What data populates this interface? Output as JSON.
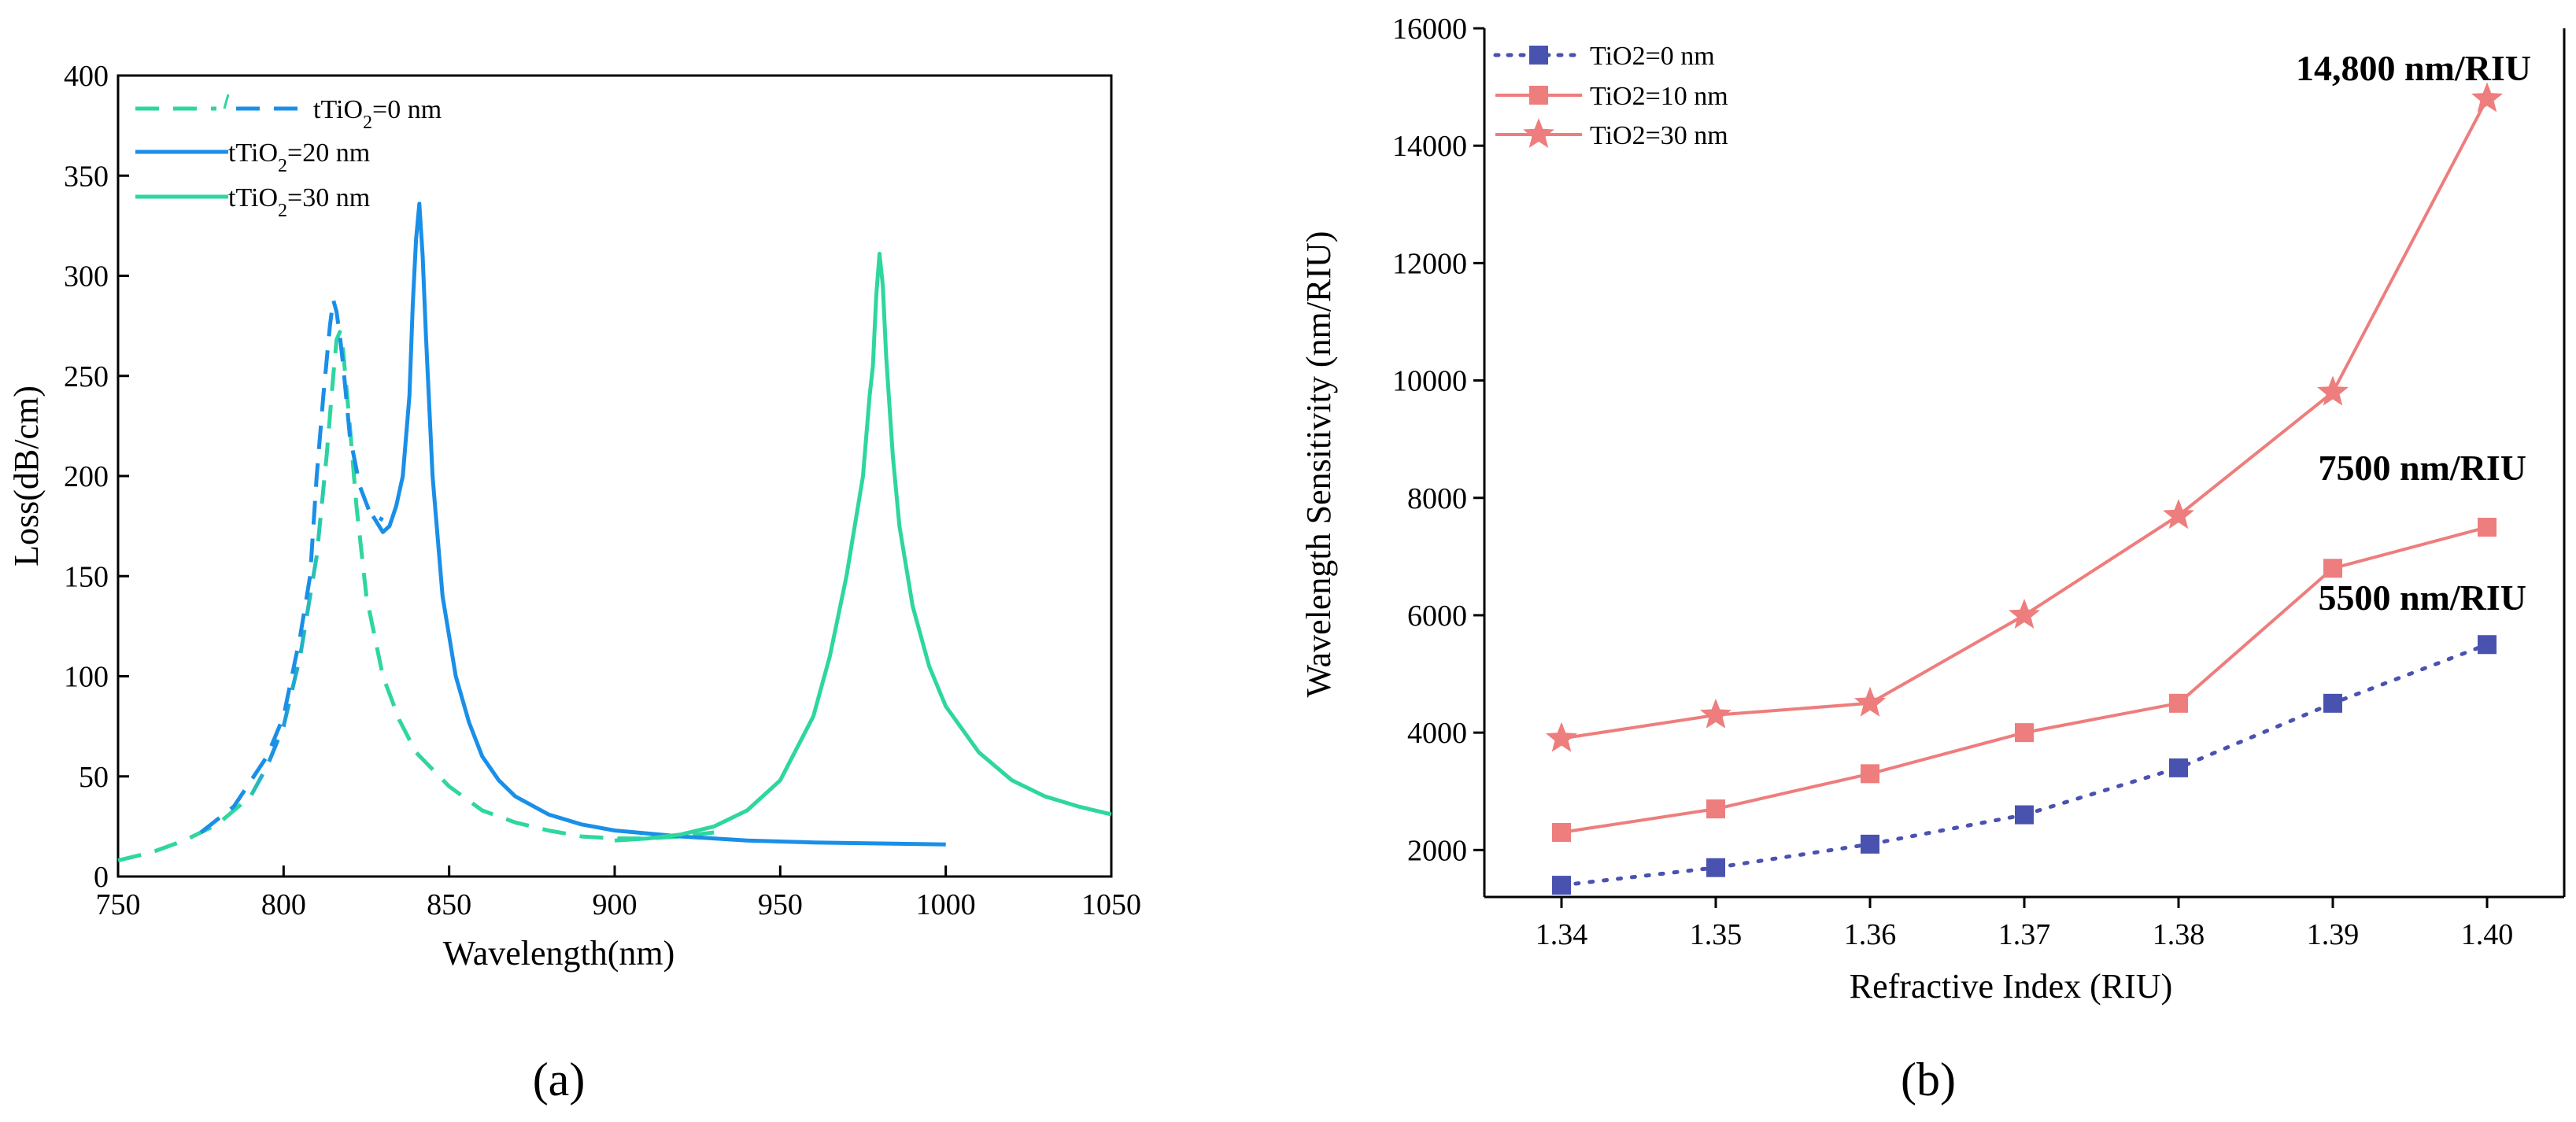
{
  "figure": {
    "panel_a_label": "(a)",
    "panel_b_label": "(b)"
  },
  "chart_data": [
    {
      "id": "a",
      "type": "line",
      "xlabel": "Wavelength(nm)",
      "ylabel": "Loss(dB/cm)",
      "xlim": [
        750,
        1050
      ],
      "ylim": [
        0,
        400
      ],
      "xticks": [
        750,
        800,
        850,
        900,
        950,
        1000,
        1050
      ],
      "yticks": [
        0,
        50,
        100,
        150,
        200,
        250,
        300,
        350,
        400
      ],
      "legend_position": "top-left",
      "series": [
        {
          "name": "tTiO2=0 nm",
          "label_pre": "tTiO",
          "label_sub": "2",
          "label_post": "=0 nm",
          "style": "dashed",
          "colors": [
            "#2ed6a0",
            "#1a8fe8"
          ],
          "x": [
            750,
            760,
            770,
            780,
            790,
            795,
            800,
            805,
            810,
            813,
            815,
            816,
            817,
            818,
            820,
            822,
            825,
            830,
            835,
            840,
            850,
            860,
            870,
            880,
            890,
            900,
            910,
            920,
            930
          ],
          "y": [
            8,
            12,
            18,
            26,
            40,
            55,
            75,
            110,
            160,
            210,
            250,
            268,
            272,
            262,
            225,
            185,
            140,
            100,
            78,
            62,
            45,
            33,
            27,
            23,
            20,
            19,
            19,
            20,
            22
          ]
        },
        {
          "name": "tTiO2=0 nm",
          "label_pre": "",
          "label_sub": "",
          "label_post": "",
          "style": "dashed",
          "color": "#1a8fe8",
          "x": [
            775,
            785,
            795,
            800,
            805,
            808,
            810,
            812,
            814,
            815,
            816,
            817,
            818,
            820,
            823,
            826,
            830
          ],
          "y": [
            22,
            35,
            60,
            80,
            120,
            150,
            200,
            240,
            275,
            288,
            282,
            270,
            255,
            220,
            195,
            182,
            178
          ]
        },
        {
          "name": "tTiO2=20 nm",
          "label_pre": "tTiO",
          "label_sub": "2",
          "label_post": "=20 nm",
          "style": "solid",
          "color": "#1a8fe8",
          "x": [
            827,
            830,
            832,
            834,
            836,
            838,
            839,
            840,
            841,
            842,
            843,
            845,
            848,
            852,
            856,
            860,
            865,
            870,
            880,
            890,
            900,
            920,
            940,
            960,
            980,
            1000
          ],
          "y": [
            180,
            172,
            175,
            185,
            200,
            240,
            285,
            318,
            336,
            310,
            270,
            200,
            140,
            100,
            77,
            60,
            48,
            40,
            31,
            26,
            23,
            20,
            18,
            17,
            16.5,
            16
          ]
        },
        {
          "name": "tTiO2=30 nm",
          "label_pre": "tTiO",
          "label_sub": "2",
          "label_post": "=30 nm",
          "style": "solid",
          "color": "#2ed6a0",
          "x": [
            900,
            910,
            920,
            930,
            940,
            950,
            960,
            965,
            970,
            975,
            977,
            978,
            979,
            980,
            981,
            982,
            984,
            986,
            990,
            995,
            1000,
            1010,
            1020,
            1030,
            1040,
            1050
          ],
          "y": [
            18,
            19,
            21,
            25,
            33,
            48,
            80,
            110,
            150,
            200,
            240,
            255,
            290,
            311,
            295,
            260,
            210,
            175,
            135,
            105,
            85,
            62,
            48,
            40,
            35,
            31
          ]
        }
      ]
    },
    {
      "id": "b",
      "type": "line",
      "xlabel": "Refractive Index (RIU)",
      "ylabel": "Wavelength Sensitivity (nm/RIU)",
      "xlim": [
        1.335,
        1.405
      ],
      "ylim": [
        1200,
        16000
      ],
      "xticks": [
        "1.34",
        "1.35",
        "1.36",
        "1.37",
        "1.38",
        "1.39",
        "1.40"
      ],
      "yticks": [
        2000,
        4000,
        6000,
        8000,
        10000,
        12000,
        14000,
        16000
      ],
      "legend_position": "top-left",
      "x": [
        1.34,
        1.35,
        1.36,
        1.37,
        1.38,
        1.39,
        1.4
      ],
      "series": [
        {
          "name": "TiO2=0 nm",
          "style": "dotted",
          "marker": "square",
          "color": "#4a52b0",
          "values": [
            1400,
            1700,
            2100,
            2600,
            3400,
            4500,
            5500
          ]
        },
        {
          "name": "TiO2=10 nm",
          "style": "solid",
          "marker": "square",
          "color": "#ee7d7d",
          "values": [
            2300,
            2700,
            3300,
            4000,
            4500,
            6800,
            7500
          ]
        },
        {
          "name": "TiO2=30 nm",
          "style": "solid",
          "marker": "star",
          "color": "#ee7d7d",
          "values": [
            3900,
            4300,
            4500,
            6000,
            7700,
            9800,
            14800
          ]
        }
      ],
      "annotations": [
        {
          "text": "14,800 nm/RIU",
          "series": 2
        },
        {
          "text": "7500 nm/RIU",
          "series": 1
        },
        {
          "text": "5500 nm/RIU",
          "series": 0
        }
      ]
    }
  ]
}
